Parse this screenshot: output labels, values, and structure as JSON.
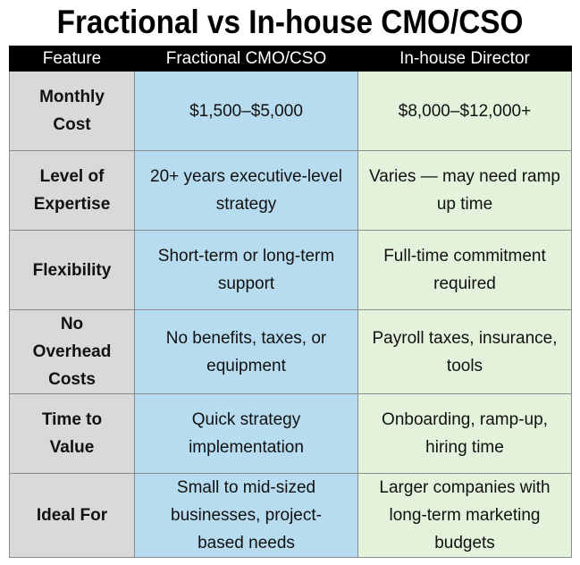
{
  "title": "Fractional vs In-house CMO/CSO",
  "headers": [
    "Feature",
    "Fractional CMO/CSO",
    "In-house Director"
  ],
  "rows": [
    {
      "feature": "Monthly Cost",
      "fractional": "$1,500–$5,000",
      "inhouse": "$8,000–$12,000+"
    },
    {
      "feature": "Level of Expertise",
      "fractional": "20+ years executive-level strategy",
      "inhouse": "Varies — may need ramp up time"
    },
    {
      "feature": "Flexibility",
      "fractional": "Short-term or long-term support",
      "inhouse": "Full-time commitment required"
    },
    {
      "feature": "No Overhead Costs",
      "fractional": "No benefits, taxes, or equipment",
      "inhouse": "Payroll taxes, insurance, tools"
    },
    {
      "feature": "Time to Value",
      "fractional": "Quick strategy implementation",
      "inhouse": "Onboarding, ramp-up, hiring time"
    },
    {
      "feature": "Ideal For",
      "fractional": "Small to mid-sized businesses, project-based needs",
      "inhouse": "Larger companies with long-term marketing budgets"
    }
  ],
  "colors": {
    "header_bg": "#000000",
    "feature_bg": "#d9d9d9",
    "fractional_bg": "#b7dcf0",
    "inhouse_bg": "#e3f2da"
  }
}
